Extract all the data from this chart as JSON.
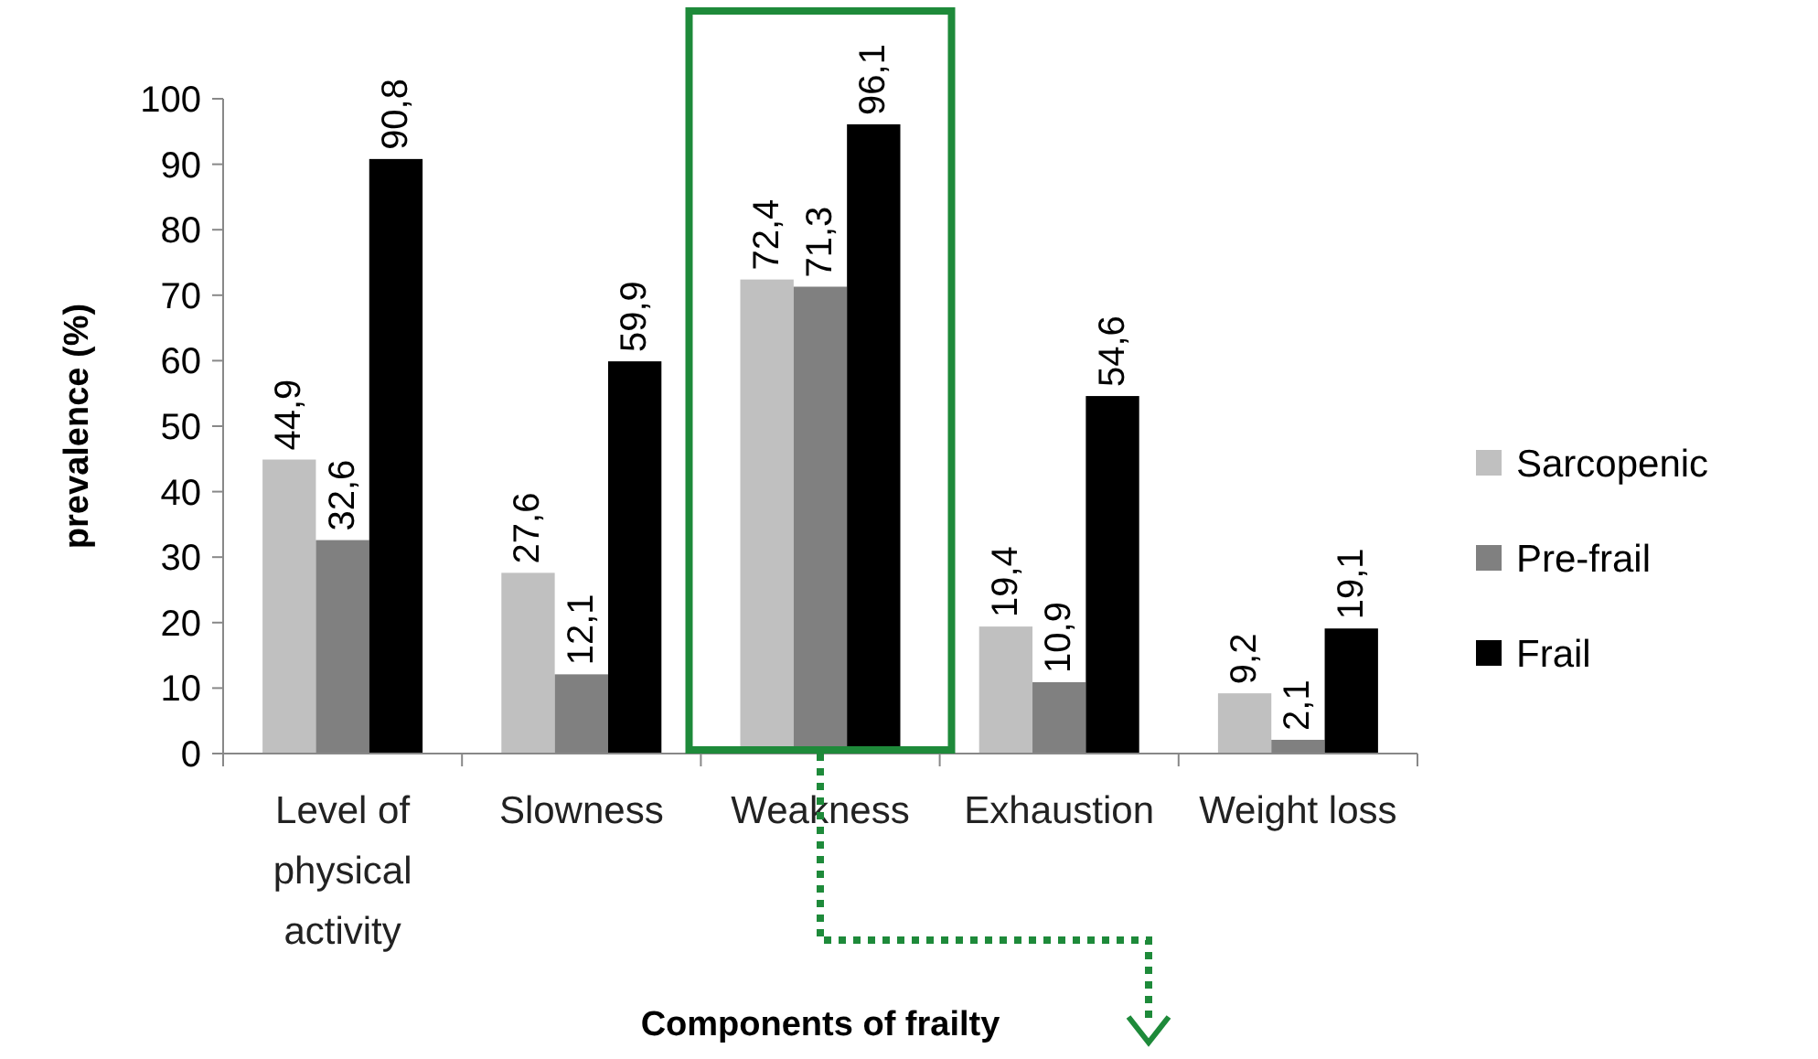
{
  "chart_data": {
    "type": "bar",
    "xlabel": "Components of frailty",
    "ylabel": "prevalence (%)",
    "categories": [
      "Level of physical activity",
      "Slowness",
      "Weakness",
      "Exhaustion",
      "Weight loss"
    ],
    "series": [
      {
        "name": "Sarcopenic",
        "color": "#c0c0c0",
        "values": [
          44.9,
          27.6,
          72.4,
          19.4,
          9.2
        ],
        "value_labels": [
          "44,9",
          "27,6",
          "72,4",
          "19,4",
          "9,2"
        ]
      },
      {
        "name": "Pre-frail",
        "color": "#808080",
        "values": [
          32.6,
          12.1,
          71.3,
          10.9,
          2.1
        ],
        "value_labels": [
          "32,6",
          "12,1",
          "71,3",
          "10,9",
          "2,1"
        ]
      },
      {
        "name": "Frail",
        "color": "#000000",
        "values": [
          90.8,
          59.9,
          96.1,
          54.6,
          19.1
        ],
        "value_labels": [
          "90,8",
          "59,9",
          "96,1",
          "54,6",
          "19,1"
        ]
      }
    ],
    "ylim": [
      0,
      100
    ],
    "yticks": [
      0,
      10,
      20,
      30,
      40,
      50,
      60,
      70,
      80,
      90,
      100
    ],
    "grid": false,
    "legend": "right"
  }
}
